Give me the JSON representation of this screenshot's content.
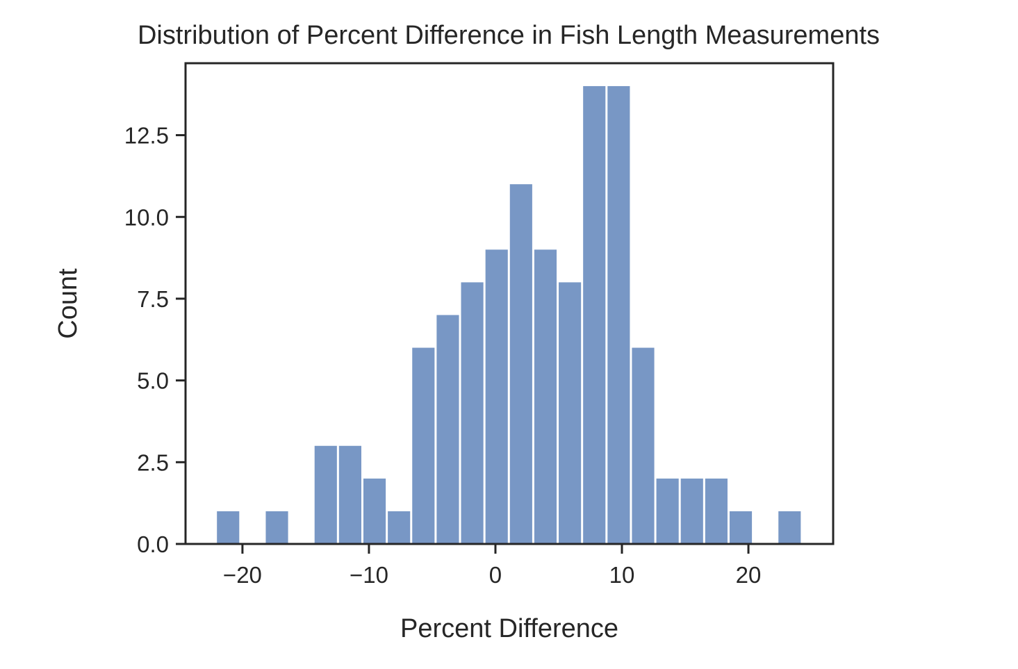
{
  "chart_data": {
    "type": "bar",
    "title": "Distribution of Percent Difference in Fish Length Measurements",
    "xlabel": "Percent Difference",
    "ylabel": "Count",
    "xlim": [
      -24.5,
      26.7
    ],
    "ylim": [
      0,
      14.7
    ],
    "xticks": [
      -20,
      -10,
      0,
      10,
      20
    ],
    "xtick_labels": [
      "−20",
      "−10",
      "0",
      "10",
      "20"
    ],
    "yticks": [
      0,
      2.5,
      5,
      7.5,
      10,
      12.5
    ],
    "ytick_labels": [
      "0.0",
      "2.5",
      "5.0",
      "7.5",
      "10.0",
      "12.5"
    ],
    "grid": false,
    "bar_color": "#7897c5",
    "bin_edges_start": -22.1,
    "bin_width": 1.93,
    "values": [
      1,
      0,
      1,
      0,
      3,
      3,
      2,
      1,
      6,
      7,
      8,
      9,
      11,
      9,
      8,
      14,
      14,
      6,
      2,
      2,
      2,
      1,
      0,
      1
    ]
  }
}
